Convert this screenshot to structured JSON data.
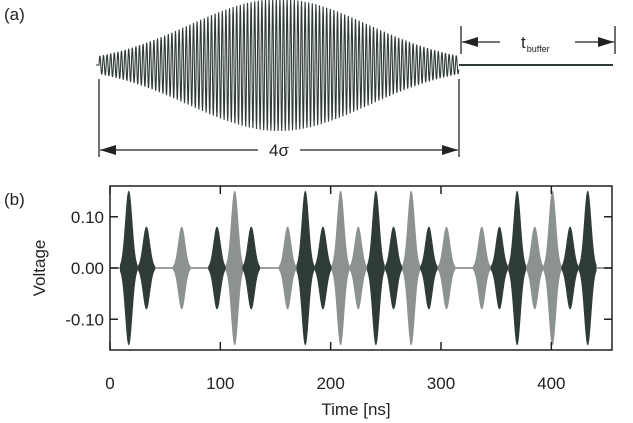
{
  "panel_a_label": "(a)",
  "panel_b_label": "(b)",
  "sigma_label": "4σ",
  "buffer_label_main": "t",
  "buffer_label_sub": "buffer",
  "colors": {
    "dark": "#2f3b39",
    "light": "#8c9290",
    "axis": "#222222"
  },
  "chart_data": [
    {
      "type": "line",
      "panel": "a",
      "description_of_envelope": "gaussian",
      "segments": [
        "4σ",
        "t_buffer"
      ]
    },
    {
      "type": "line",
      "panel": "b",
      "xlabel": "Time [ns]",
      "ylabel": "Voltage",
      "xlim": [
        0,
        455
      ],
      "ylim": [
        -0.16,
        0.16
      ],
      "xticks": [
        0,
        100,
        200,
        300,
        400
      ],
      "xtick_labels": [
        "0",
        "100",
        "200",
        "300",
        "400"
      ],
      "yticks": [
        0.1,
        0.0,
        -0.1
      ],
      "ytick_labels": [
        "0.10",
        "0.00",
        "-0.10"
      ],
      "grid": false,
      "pulses": [
        {
          "t": 17,
          "amp": 0.15,
          "color": "dark"
        },
        {
          "t": 33,
          "amp": 0.08,
          "color": "dark"
        },
        {
          "t": 65,
          "amp": 0.08,
          "color": "light"
        },
        {
          "t": 97,
          "amp": 0.08,
          "color": "dark"
        },
        {
          "t": 113,
          "amp": 0.15,
          "color": "light"
        },
        {
          "t": 128,
          "amp": 0.08,
          "color": "dark"
        },
        {
          "t": 161,
          "amp": 0.08,
          "color": "light"
        },
        {
          "t": 177,
          "amp": 0.15,
          "color": "dark"
        },
        {
          "t": 193,
          "amp": 0.08,
          "color": "dark"
        },
        {
          "t": 209,
          "amp": 0.15,
          "color": "light"
        },
        {
          "t": 225,
          "amp": 0.08,
          "color": "light"
        },
        {
          "t": 241,
          "amp": 0.15,
          "color": "dark"
        },
        {
          "t": 257,
          "amp": 0.08,
          "color": "dark"
        },
        {
          "t": 273,
          "amp": 0.15,
          "color": "light"
        },
        {
          "t": 289,
          "amp": 0.08,
          "color": "dark"
        },
        {
          "t": 305,
          "amp": 0.08,
          "color": "light"
        },
        {
          "t": 337,
          "amp": 0.08,
          "color": "light"
        },
        {
          "t": 353,
          "amp": 0.08,
          "color": "dark"
        },
        {
          "t": 369,
          "amp": 0.15,
          "color": "dark"
        },
        {
          "t": 385,
          "amp": 0.08,
          "color": "light"
        },
        {
          "t": 401,
          "amp": 0.15,
          "color": "light"
        },
        {
          "t": 417,
          "amp": 0.08,
          "color": "dark"
        },
        {
          "t": 433,
          "amp": 0.15,
          "color": "dark"
        }
      ]
    }
  ]
}
